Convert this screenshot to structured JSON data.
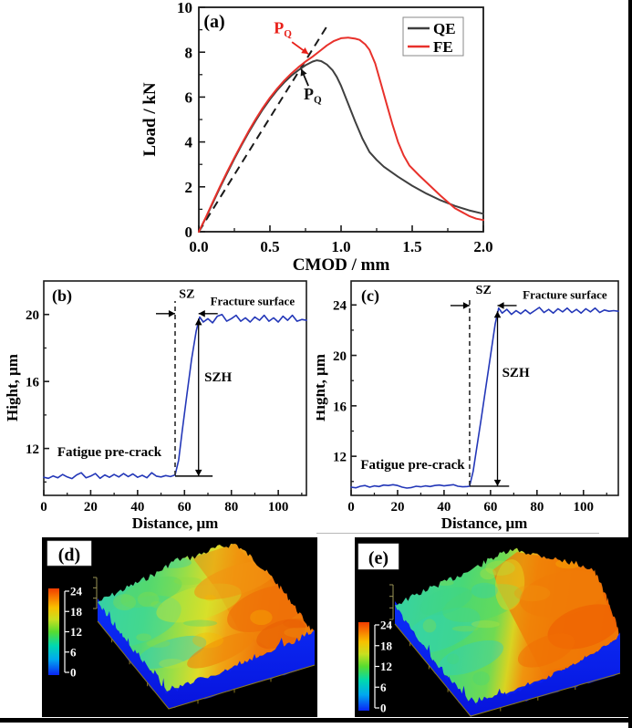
{
  "figure": {
    "panel_tags": {
      "a": "(a)",
      "b": "(b)",
      "c": "(c)",
      "d": "(d)",
      "e": "(e)"
    }
  },
  "chart_data": [
    {
      "id": "a",
      "type": "line",
      "tag": "(a)",
      "xlabel": "CMOD / mm",
      "ylabel": "Load / kN",
      "xlim": [
        0,
        2
      ],
      "ylim": [
        0,
        10
      ],
      "xticks": [
        0,
        0.5,
        1,
        1.5,
        2
      ],
      "xtick_labels": [
        "0.0",
        "0.5",
        "1.0",
        "1.5",
        "2.0"
      ],
      "yticks": [
        0,
        2,
        4,
        6,
        8,
        10
      ],
      "grid": false,
      "legend_position": "top-right",
      "series": [
        {
          "name": "QE",
          "color": "#3f3f3f",
          "points": [
            [
              0,
              0
            ],
            [
              0.05,
              0.62
            ],
            [
              0.1,
              1.3
            ],
            [
              0.15,
              1.98
            ],
            [
              0.2,
              2.62
            ],
            [
              0.25,
              3.25
            ],
            [
              0.3,
              3.85
            ],
            [
              0.35,
              4.42
            ],
            [
              0.4,
              4.95
            ],
            [
              0.45,
              5.45
            ],
            [
              0.5,
              5.9
            ],
            [
              0.55,
              6.3
            ],
            [
              0.6,
              6.65
            ],
            [
              0.65,
              6.95
            ],
            [
              0.7,
              7.2
            ],
            [
              0.75,
              7.42
            ],
            [
              0.8,
              7.58
            ],
            [
              0.83,
              7.64
            ],
            [
              0.86,
              7.6
            ],
            [
              0.9,
              7.45
            ],
            [
              0.94,
              7.2
            ],
            [
              0.97,
              6.9
            ],
            [
              1.0,
              6.5
            ],
            [
              1.05,
              5.7
            ],
            [
              1.1,
              4.9
            ],
            [
              1.15,
              4.15
            ],
            [
              1.2,
              3.55
            ],
            [
              1.25,
              3.2
            ],
            [
              1.3,
              2.9
            ],
            [
              1.4,
              2.45
            ],
            [
              1.5,
              2.05
            ],
            [
              1.6,
              1.7
            ],
            [
              1.7,
              1.4
            ],
            [
              1.8,
              1.15
            ],
            [
              1.9,
              0.95
            ],
            [
              2.0,
              0.8
            ]
          ]
        },
        {
          "name": "FE",
          "color": "#e8312b",
          "points": [
            [
              0,
              0
            ],
            [
              0.05,
              0.65
            ],
            [
              0.1,
              1.35
            ],
            [
              0.15,
              2.03
            ],
            [
              0.2,
              2.68
            ],
            [
              0.25,
              3.3
            ],
            [
              0.3,
              3.9
            ],
            [
              0.35,
              4.48
            ],
            [
              0.4,
              5.02
            ],
            [
              0.45,
              5.52
            ],
            [
              0.5,
              5.97
            ],
            [
              0.55,
              6.37
            ],
            [
              0.6,
              6.73
            ],
            [
              0.65,
              7.05
            ],
            [
              0.7,
              7.33
            ],
            [
              0.75,
              7.58
            ],
            [
              0.8,
              7.8
            ],
            [
              0.85,
              8.05
            ],
            [
              0.9,
              8.3
            ],
            [
              0.95,
              8.5
            ],
            [
              1.0,
              8.62
            ],
            [
              1.05,
              8.65
            ],
            [
              1.1,
              8.6
            ],
            [
              1.13,
              8.55
            ],
            [
              1.17,
              8.35
            ],
            [
              1.2,
              8.1
            ],
            [
              1.24,
              7.5
            ],
            [
              1.28,
              6.6
            ],
            [
              1.32,
              5.7
            ],
            [
              1.36,
              4.8
            ],
            [
              1.4,
              4.0
            ],
            [
              1.44,
              3.4
            ],
            [
              1.48,
              2.95
            ],
            [
              1.55,
              2.5
            ],
            [
              1.6,
              2.2
            ],
            [
              1.7,
              1.6
            ],
            [
              1.8,
              1.05
            ],
            [
              1.9,
              0.7
            ],
            [
              1.95,
              0.58
            ],
            [
              2.0,
              0.52
            ]
          ]
        }
      ],
      "construction_line": {
        "style": "dashed",
        "color": "#1a1a1a",
        "from": [
          0,
          0
        ],
        "to": [
          0.9,
          9.15
        ]
      },
      "annotations": [
        {
          "type": "arrow-label",
          "letter": "P",
          "sub": "Q",
          "color": "#e8201a",
          "label_xy": [
            0.59,
            8.85
          ],
          "tail_xy": [
            0.655,
            8.45
          ],
          "tip_xy": [
            0.77,
            7.92
          ],
          "size": 18
        },
        {
          "type": "arrow-label",
          "letter": "P",
          "sub": "Q",
          "color": "#111111",
          "label_xy": [
            0.8,
            5.9
          ],
          "tail_xy": [
            0.77,
            6.5
          ],
          "tip_xy": [
            0.72,
            7.25
          ],
          "size": 18
        }
      ]
    },
    {
      "id": "b",
      "type": "line",
      "tag": "(b)",
      "xlabel": "Distance, μm",
      "ylabel": "Hight, μm",
      "xlim": [
        0,
        112
      ],
      "ylim": [
        9.2,
        22
      ],
      "xticks": [
        0,
        20,
        40,
        60,
        80,
        100
      ],
      "yticks": [
        12,
        16,
        20
      ],
      "grid": false,
      "series": [
        {
          "name": "profile",
          "color": "#2337b8",
          "points": [
            [
              0,
              10.28
            ],
            [
              2,
              10.22
            ],
            [
              4,
              10.36
            ],
            [
              6,
              10.25
            ],
            [
              8,
              10.45
            ],
            [
              10,
              10.3
            ],
            [
              12,
              10.2
            ],
            [
              14,
              10.42
            ],
            [
              16,
              10.55
            ],
            [
              18,
              10.25
            ],
            [
              20,
              10.35
            ],
            [
              22,
              10.5
            ],
            [
              24,
              10.22
            ],
            [
              26,
              10.42
            ],
            [
              28,
              10.28
            ],
            [
              30,
              10.45
            ],
            [
              32,
              10.3
            ],
            [
              34,
              10.5
            ],
            [
              36,
              10.32
            ],
            [
              38,
              10.48
            ],
            [
              40,
              10.28
            ],
            [
              42,
              10.4
            ],
            [
              44,
              10.25
            ],
            [
              46,
              10.55
            ],
            [
              48,
              10.35
            ],
            [
              50,
              10.3
            ],
            [
              52,
              10.38
            ],
            [
              54,
              10.32
            ],
            [
              56,
              10.42
            ],
            [
              57.5,
              11.3
            ],
            [
              59,
              13.0
            ],
            [
              61,
              15.2
            ],
            [
              63,
              17.3
            ],
            [
              65,
              19.0
            ],
            [
              66.5,
              19.85
            ],
            [
              68,
              19.55
            ],
            [
              70,
              19.75
            ],
            [
              72,
              19.5
            ],
            [
              74,
              19.9
            ],
            [
              76,
              20.0
            ],
            [
              78,
              19.6
            ],
            [
              80,
              19.75
            ],
            [
              82,
              19.95
            ],
            [
              84,
              19.6
            ],
            [
              86,
              19.8
            ],
            [
              88,
              19.55
            ],
            [
              90,
              19.85
            ],
            [
              92,
              19.65
            ],
            [
              94,
              19.95
            ],
            [
              96,
              19.6
            ],
            [
              98,
              19.8
            ],
            [
              100,
              19.55
            ],
            [
              102,
              19.9
            ],
            [
              104,
              19.65
            ],
            [
              106,
              19.95
            ],
            [
              108,
              19.6
            ],
            [
              110,
              19.7
            ],
            [
              112,
              19.65
            ]
          ]
        }
      ],
      "annotations": [
        {
          "type": "vline-dashed",
          "x": 56,
          "y1": 10.4,
          "y2": 20.8
        },
        {
          "type": "sz-bracket",
          "text": "SZ",
          "x1": 56,
          "x2": 66,
          "y": 20.05,
          "label_xy": [
            61,
            21.0
          ],
          "size": 14
        },
        {
          "type": "text",
          "text": "Fracture surface",
          "xy": [
            89,
            20.55
          ],
          "size": 13
        },
        {
          "type": "szh-arrow",
          "text": "SZH",
          "x": 66,
          "y1": 19.75,
          "y2": 10.35,
          "label_xy": [
            68.5,
            16.0
          ],
          "size": 15
        },
        {
          "type": "baseline",
          "x1": 56,
          "x2": 72,
          "y": 10.35
        },
        {
          "type": "text",
          "text": "Fatigue pre-crack",
          "xy": [
            28,
            11.55
          ],
          "size": 15
        }
      ]
    },
    {
      "id": "c",
      "type": "line",
      "tag": "(c)",
      "xlabel": "Distance, μm",
      "ylabel": "Hight, μm",
      "xlim": [
        0,
        115
      ],
      "ylim": [
        8.9,
        25.9
      ],
      "xticks": [
        0,
        20,
        40,
        60,
        80,
        100
      ],
      "yticks": [
        12,
        16,
        20,
        24
      ],
      "grid": false,
      "series": [
        {
          "name": "profile",
          "color": "#2337b8",
          "points": [
            [
              0,
              9.55
            ],
            [
              2,
              9.5
            ],
            [
              4,
              9.62
            ],
            [
              6,
              9.68
            ],
            [
              8,
              9.55
            ],
            [
              10,
              9.65
            ],
            [
              12,
              9.6
            ],
            [
              14,
              9.72
            ],
            [
              16,
              9.68
            ],
            [
              18,
              9.75
            ],
            [
              20,
              9.68
            ],
            [
              22,
              9.55
            ],
            [
              24,
              9.48
            ],
            [
              26,
              9.52
            ],
            [
              28,
              9.62
            ],
            [
              30,
              9.58
            ],
            [
              32,
              9.65
            ],
            [
              34,
              9.6
            ],
            [
              36,
              9.68
            ],
            [
              38,
              9.72
            ],
            [
              40,
              9.65
            ],
            [
              42,
              9.7
            ],
            [
              44,
              9.75
            ],
            [
              46,
              9.62
            ],
            [
              48,
              9.58
            ],
            [
              50,
              9.6
            ],
            [
              51,
              9.62
            ],
            [
              52.5,
              10.8
            ],
            [
              54,
              12.6
            ],
            [
              56,
              15.0
            ],
            [
              58,
              17.5
            ],
            [
              60,
              20.0
            ],
            [
              62,
              22.5
            ],
            [
              63.5,
              23.75
            ],
            [
              65,
              23.35
            ],
            [
              67,
              23.65
            ],
            [
              69,
              23.25
            ],
            [
              71,
              23.55
            ],
            [
              73,
              23.3
            ],
            [
              75,
              23.6
            ],
            [
              77,
              23.3
            ],
            [
              79,
              23.55
            ],
            [
              81,
              23.8
            ],
            [
              83,
              23.4
            ],
            [
              85,
              23.65
            ],
            [
              87,
              23.35
            ],
            [
              89,
              23.7
            ],
            [
              91,
              23.45
            ],
            [
              93,
              23.75
            ],
            [
              95,
              23.4
            ],
            [
              97,
              23.65
            ],
            [
              99,
              23.35
            ],
            [
              101,
              23.7
            ],
            [
              103,
              23.45
            ],
            [
              105,
              23.75
            ],
            [
              107,
              23.4
            ],
            [
              109,
              23.6
            ],
            [
              111,
              23.5
            ],
            [
              113,
              23.55
            ],
            [
              115,
              23.5
            ]
          ]
        }
      ],
      "annotations": [
        {
          "type": "vline-dashed",
          "x": 51,
          "y1": 9.7,
          "y2": 24.6
        },
        {
          "type": "sz-bracket",
          "text": "SZ",
          "x1": 51,
          "x2": 63,
          "y": 23.95,
          "label_xy": [
            57,
            24.9
          ],
          "size": 14
        },
        {
          "type": "text",
          "text": "Fracture surface",
          "xy": [
            92,
            24.5
          ],
          "size": 13
        },
        {
          "type": "szh-arrow",
          "text": "SZH",
          "x": 63,
          "y1": 23.5,
          "y2": 9.63,
          "label_xy": [
            65,
            18.3
          ],
          "size": 15
        },
        {
          "type": "baseline",
          "x1": 51,
          "x2": 68,
          "y": 9.63
        },
        {
          "type": "text",
          "text": "Fatigue pre-crack",
          "xy": [
            26.5,
            11.0
          ],
          "size": 15
        }
      ]
    },
    {
      "id": "d",
      "type": "heatmap",
      "tag": "(d)",
      "zlim": [
        0,
        24
      ],
      "colorbar_ticks": [
        0,
        6,
        12,
        18,
        24
      ],
      "palette": [
        "#0a24f5",
        "#00a8f0",
        "#00d8b0",
        "#58dc30",
        "#c8e020",
        "#f8c000",
        "#f03c00"
      ]
    },
    {
      "id": "e",
      "type": "heatmap",
      "tag": "(e)",
      "zlim": [
        0,
        24
      ],
      "colorbar_ticks": [
        0,
        6,
        12,
        18,
        24
      ],
      "palette": [
        "#0a24f5",
        "#00a8f0",
        "#00d8b0",
        "#58dc30",
        "#c8e020",
        "#f8c000",
        "#f03c00"
      ]
    }
  ]
}
